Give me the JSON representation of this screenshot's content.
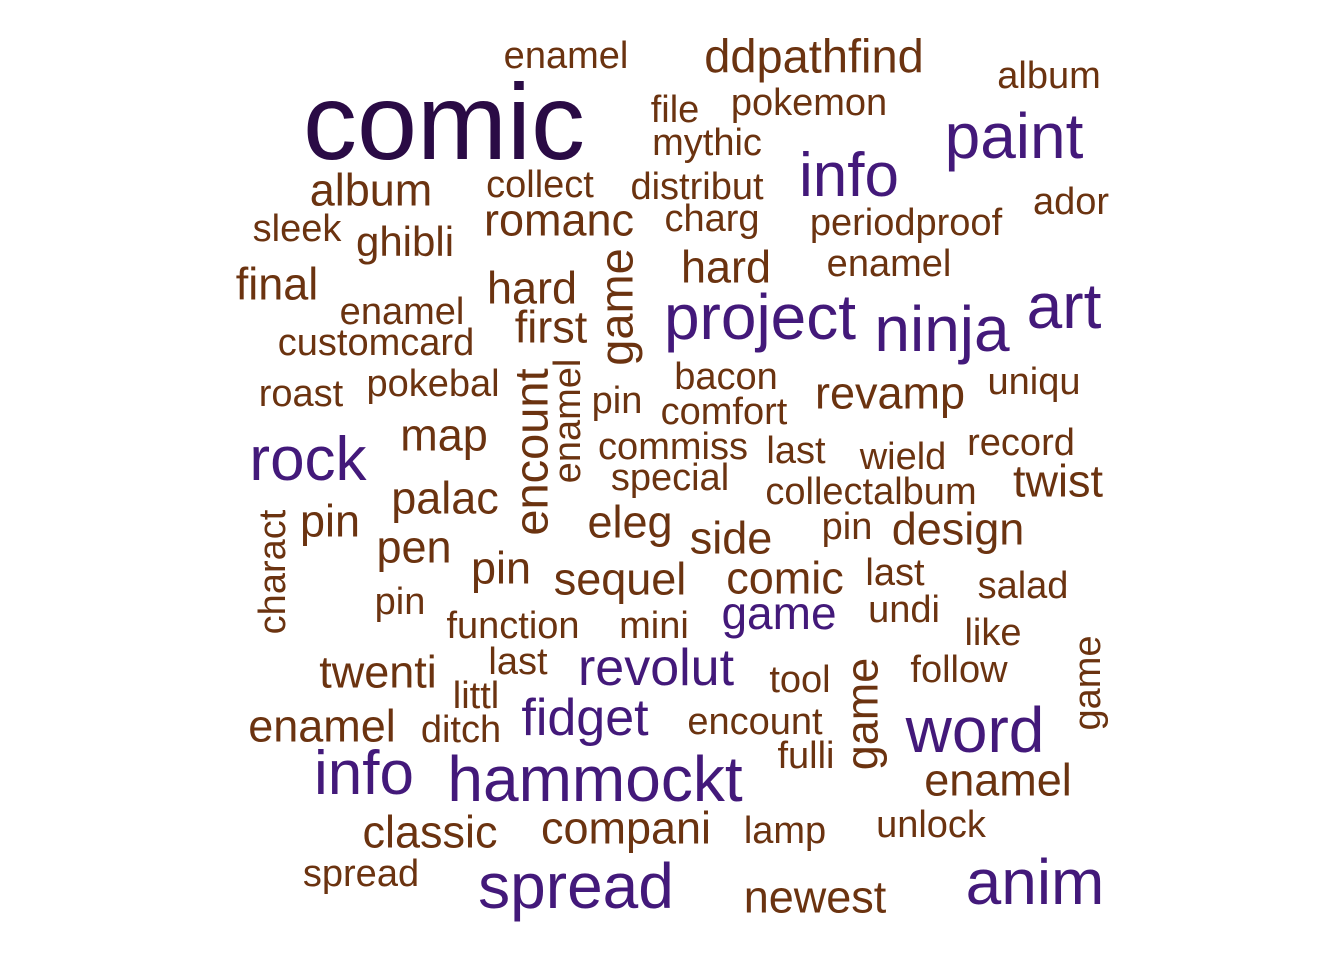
{
  "colors": {
    "darkest": "#2a0b45",
    "purple": "#43197a",
    "brown": "#6b3310"
  },
  "words": [
    {
      "text": "comic",
      "weight": 1.0,
      "color": "#2a0b45"
    },
    {
      "text": "paint",
      "weight": 0.62,
      "color": "#43197a"
    },
    {
      "text": "info",
      "weight": 0.62,
      "color": "#43197a"
    },
    {
      "text": "art",
      "weight": 0.64,
      "color": "#43197a"
    },
    {
      "text": "project",
      "weight": 0.64,
      "color": "#43197a"
    },
    {
      "text": "ninja",
      "weight": 0.64,
      "color": "#43197a"
    },
    {
      "text": "rock",
      "weight": 0.62,
      "color": "#43197a"
    },
    {
      "text": "word",
      "weight": 0.64,
      "color": "#43197a"
    },
    {
      "text": "info",
      "weight": 0.62,
      "color": "#43197a"
    },
    {
      "text": "hammockt",
      "weight": 0.64,
      "color": "#43197a"
    },
    {
      "text": "spread",
      "weight": 0.64,
      "color": "#43197a"
    },
    {
      "text": "anim",
      "weight": 0.64,
      "color": "#43197a"
    },
    {
      "text": "revolut",
      "weight": 0.52,
      "color": "#43197a"
    },
    {
      "text": "fidget",
      "weight": 0.52,
      "color": "#43197a"
    },
    {
      "text": "game",
      "weight": 0.46,
      "color": "#43197a"
    },
    {
      "text": "ddpathfind",
      "weight": 0.48,
      "color": "#6b3310"
    },
    {
      "text": "enamel",
      "weight": 0.38,
      "color": "#6b3310"
    },
    {
      "text": "album",
      "weight": 0.38,
      "color": "#6b3310"
    },
    {
      "text": "file",
      "weight": 0.38,
      "color": "#6b3310"
    },
    {
      "text": "pokemon",
      "weight": 0.38,
      "color": "#6b3310"
    },
    {
      "text": "mythic",
      "weight": 0.38,
      "color": "#6b3310"
    },
    {
      "text": "album",
      "weight": 0.45,
      "color": "#6b3310"
    },
    {
      "text": "collect",
      "weight": 0.38,
      "color": "#6b3310"
    },
    {
      "text": "distribut",
      "weight": 0.38,
      "color": "#6b3310"
    },
    {
      "text": "ador",
      "weight": 0.38,
      "color": "#6b3310"
    },
    {
      "text": "sleek",
      "weight": 0.38,
      "color": "#6b3310"
    },
    {
      "text": "ghibli",
      "weight": 0.42,
      "color": "#6b3310"
    },
    {
      "text": "romanc",
      "weight": 0.45,
      "color": "#6b3310"
    },
    {
      "text": "charg",
      "weight": 0.38,
      "color": "#6b3310"
    },
    {
      "text": "periodproof",
      "weight": 0.38,
      "color": "#6b3310"
    },
    {
      "text": "final",
      "weight": 0.45,
      "color": "#6b3310"
    },
    {
      "text": "hard",
      "weight": 0.45,
      "color": "#6b3310"
    },
    {
      "text": "game",
      "weight": 0.48,
      "color": "#6b3310"
    },
    {
      "text": "hard",
      "weight": 0.45,
      "color": "#6b3310"
    },
    {
      "text": "enamel",
      "weight": 0.38,
      "color": "#6b3310"
    },
    {
      "text": "enamel",
      "weight": 0.38,
      "color": "#6b3310"
    },
    {
      "text": "first",
      "weight": 0.45,
      "color": "#6b3310"
    },
    {
      "text": "customcard",
      "weight": 0.38,
      "color": "#6b3310"
    },
    {
      "text": "encount",
      "weight": 0.48,
      "color": "#6b3310"
    },
    {
      "text": "enamel",
      "weight": 0.38,
      "color": "#6b3310"
    },
    {
      "text": "bacon",
      "weight": 0.38,
      "color": "#6b3310"
    },
    {
      "text": "uniqu",
      "weight": 0.38,
      "color": "#6b3310"
    },
    {
      "text": "roast",
      "weight": 0.38,
      "color": "#6b3310"
    },
    {
      "text": "pokebal",
      "weight": 0.38,
      "color": "#6b3310"
    },
    {
      "text": "pin",
      "weight": 0.38,
      "color": "#6b3310"
    },
    {
      "text": "comfort",
      "weight": 0.38,
      "color": "#6b3310"
    },
    {
      "text": "revamp",
      "weight": 0.45,
      "color": "#6b3310"
    },
    {
      "text": "map",
      "weight": 0.45,
      "color": "#6b3310"
    },
    {
      "text": "commiss",
      "weight": 0.38,
      "color": "#6b3310"
    },
    {
      "text": "last",
      "weight": 0.38,
      "color": "#6b3310"
    },
    {
      "text": "wield",
      "weight": 0.38,
      "color": "#6b3310"
    },
    {
      "text": "record",
      "weight": 0.38,
      "color": "#6b3310"
    },
    {
      "text": "special",
      "weight": 0.38,
      "color": "#6b3310"
    },
    {
      "text": "twist",
      "weight": 0.45,
      "color": "#6b3310"
    },
    {
      "text": "palac",
      "weight": 0.45,
      "color": "#6b3310"
    },
    {
      "text": "collectalbum",
      "weight": 0.38,
      "color": "#6b3310"
    },
    {
      "text": "charact",
      "weight": 0.38,
      "color": "#6b3310"
    },
    {
      "text": "pin",
      "weight": 0.45,
      "color": "#6b3310"
    },
    {
      "text": "eleg",
      "weight": 0.45,
      "color": "#6b3310"
    },
    {
      "text": "side",
      "weight": 0.45,
      "color": "#6b3310"
    },
    {
      "text": "pin",
      "weight": 0.38,
      "color": "#6b3310"
    },
    {
      "text": "design",
      "weight": 0.45,
      "color": "#6b3310"
    },
    {
      "text": "pen",
      "weight": 0.45,
      "color": "#6b3310"
    },
    {
      "text": "pin",
      "weight": 0.45,
      "color": "#6b3310"
    },
    {
      "text": "sequel",
      "weight": 0.45,
      "color": "#6b3310"
    },
    {
      "text": "comic",
      "weight": 0.45,
      "color": "#6b3310"
    },
    {
      "text": "last",
      "weight": 0.38,
      "color": "#6b3310"
    },
    {
      "text": "salad",
      "weight": 0.38,
      "color": "#6b3310"
    },
    {
      "text": "pin",
      "weight": 0.38,
      "color": "#6b3310"
    },
    {
      "text": "undi",
      "weight": 0.38,
      "color": "#6b3310"
    },
    {
      "text": "function",
      "weight": 0.38,
      "color": "#6b3310"
    },
    {
      "text": "mini",
      "weight": 0.38,
      "color": "#6b3310"
    },
    {
      "text": "like",
      "weight": 0.38,
      "color": "#6b3310"
    },
    {
      "text": "game",
      "weight": 0.38,
      "color": "#6b3310"
    },
    {
      "text": "twenti",
      "weight": 0.45,
      "color": "#6b3310"
    },
    {
      "text": "last",
      "weight": 0.38,
      "color": "#6b3310"
    },
    {
      "text": "littl",
      "weight": 0.38,
      "color": "#6b3310"
    },
    {
      "text": "tool",
      "weight": 0.38,
      "color": "#6b3310"
    },
    {
      "text": "game",
      "weight": 0.45,
      "color": "#6b3310"
    },
    {
      "text": "follow",
      "weight": 0.38,
      "color": "#6b3310"
    },
    {
      "text": "enamel",
      "weight": 0.45,
      "color": "#6b3310"
    },
    {
      "text": "ditch",
      "weight": 0.38,
      "color": "#6b3310"
    },
    {
      "text": "encount",
      "weight": 0.38,
      "color": "#6b3310"
    },
    {
      "text": "fulli",
      "weight": 0.38,
      "color": "#6b3310"
    },
    {
      "text": "enamel",
      "weight": 0.45,
      "color": "#6b3310"
    },
    {
      "text": "classic",
      "weight": 0.45,
      "color": "#6b3310"
    },
    {
      "text": "compani",
      "weight": 0.45,
      "color": "#6b3310"
    },
    {
      "text": "lamp",
      "weight": 0.38,
      "color": "#6b3310"
    },
    {
      "text": "unlock",
      "weight": 0.38,
      "color": "#6b3310"
    },
    {
      "text": "spread",
      "weight": 0.38,
      "color": "#6b3310"
    },
    {
      "text": "newest",
      "weight": 0.45,
      "color": "#6b3310"
    }
  ]
}
